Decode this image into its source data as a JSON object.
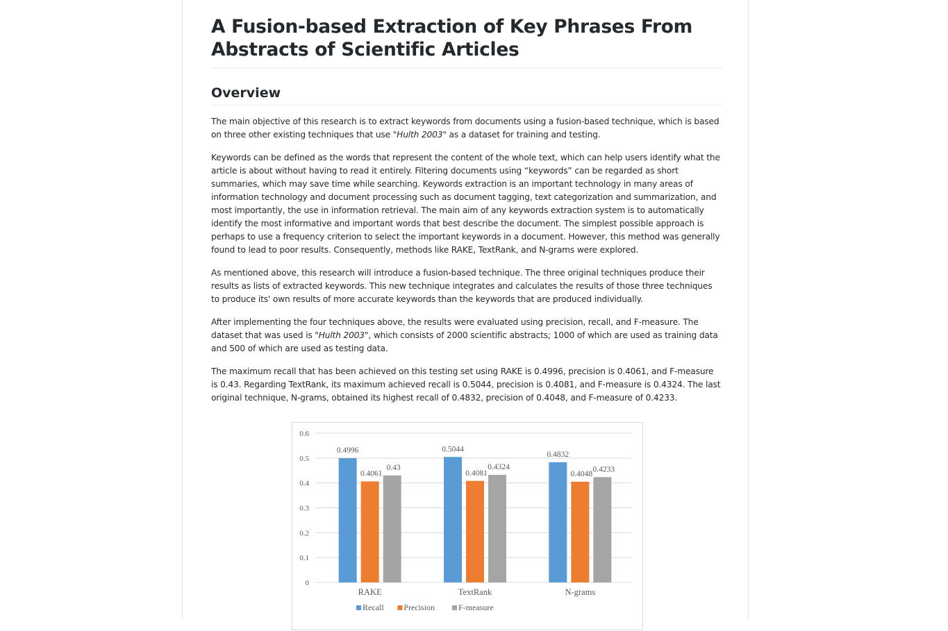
{
  "article": {
    "title": "A Fusion-based Extraction of Key Phrases From Abstracts of Scientific Articles",
    "section_heading": "Overview",
    "paragraphs": {
      "p1_a": "The main objective of this research is to extract keywords from documents using a fusion-based technique, which is based on three other existing techniques that use ",
      "p1_em": "\"Hulth 2003\"",
      "p1_b": " as a dataset for training and testing.",
      "p2": "Keywords can be defined as the words that represent the content of the whole text, which can help users identify what the article is about without having to read it entirely. Filtering documents using “keywords” can be regarded as short summaries, which may save time while searching. Keywords extraction is an important technology in many areas of information technology and document processing such as document tagging, text categorization and summarization, and most importantly, the use in information retrieval. The main aim of any keywords extraction system is to automatically identify the most informative and important words that best describe the document. The simplest possible approach is perhaps to use a frequency criterion to select the important keywords in a document. However, this method was generally found to lead to poor results. Consequently, methods like RAKE, TextRank, and N-grams were explored.",
      "p3": "As mentioned above, this research will introduce a fusion-based technique. The three original techniques produce their results as lists of extracted keywords. This new technique integrates and calculates the results of those three techniques to produce its' own results of more accurate keywords than the keywords that are produced individually.",
      "p4_a": "After implementing the four techniques above, the results were evaluated using precision, recall, and F-measure. The dataset that was used is ",
      "p4_em": "\"Hulth 2003\"",
      "p4_b": ", which consists of 2000 scientific abstracts; 1000 of which are used as training data and 500 of which are used as testing data.",
      "p5": "The maximum recall that has been achieved on this testing set using RAKE is 0.4996, precision is 0.4061, and F-measure is 0.43. Regarding TextRank, its maximum achieved recall is 0.5044, precision is 0.4081, and F-measure is 0.4324. The last original technique, N-grams, obtained its highest recall of 0.4832, precision of 0.4048, and F-measure of 0.4233."
    }
  },
  "chart_data": {
    "type": "bar",
    "categories": [
      "RAKE",
      "TextRank",
      "N-grams"
    ],
    "series": [
      {
        "name": "Recall",
        "values": [
          0.4996,
          0.5044,
          0.4832
        ],
        "labels": [
          "0.4996",
          "0.5044",
          "0.4832"
        ],
        "color": "#5b9bd5"
      },
      {
        "name": "Precision",
        "values": [
          0.4061,
          0.4081,
          0.4048
        ],
        "labels": [
          "0.4061",
          "0.4081",
          "0.4048"
        ],
        "color": "#ed7d31"
      },
      {
        "name": "F-measure",
        "values": [
          0.43,
          0.4324,
          0.4233
        ],
        "labels": [
          "0.43",
          "0.4324",
          "0.4233"
        ],
        "color": "#a5a5a5"
      }
    ],
    "yticks": [
      "0",
      "0.1",
      "0.2",
      "0.3",
      "0.4",
      "0.5",
      "0.6"
    ],
    "ylim": [
      0,
      0.6
    ],
    "grid": true,
    "legend": "bottom",
    "gridline_color": "#d9d9d9"
  }
}
